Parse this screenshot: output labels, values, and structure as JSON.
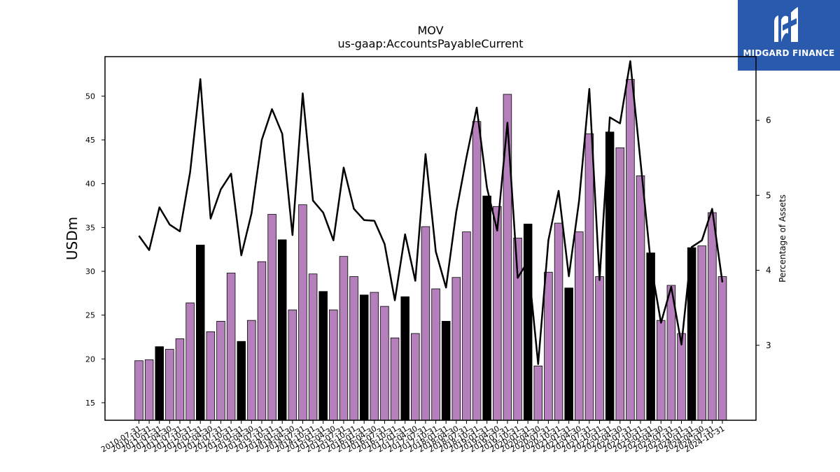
{
  "brand": {
    "name": "MIDGARD FINANCE",
    "logo_icon": "midgard-m-logo-icon",
    "color": "#2a5aad"
  },
  "chart_data": {
    "type": "bar",
    "title": "MOV",
    "subtitle": "us-gaap:AccountsPayableCurrent",
    "ylabel": "USDm",
    "y2label": "Percentage of Assets",
    "ylim": [
      13,
      54.5
    ],
    "y2lim": [
      2.0,
      6.85
    ],
    "yticks": [
      15,
      20,
      25,
      30,
      35,
      40,
      45,
      50
    ],
    "y2ticks": [
      3,
      4,
      5,
      6
    ],
    "colors": {
      "bar": "#b57fbb",
      "bar_fy": "#000000",
      "line": "#000000"
    },
    "categories": [
      "2010-07-31",
      "2010-10-31",
      "2011-01-31",
      "2011-04-30",
      "2011-07-31",
      "2011-10-31",
      "2012-01-31",
      "2012-04-30",
      "2012-07-31",
      "2012-10-31",
      "2013-01-31",
      "2013-04-30",
      "2013-07-31",
      "2013-10-31",
      "2014-01-31",
      "2014-04-30",
      "2014-07-31",
      "2014-10-31",
      "2015-01-31",
      "2015-04-30",
      "2015-07-31",
      "2015-10-31",
      "2016-01-31",
      "2016-04-30",
      "2016-07-31",
      "2016-10-31",
      "2017-01-31",
      "2017-04-30",
      "2017-07-31",
      "2017-10-31",
      "2018-01-31",
      "2018-04-30",
      "2018-07-31",
      "2018-10-31",
      "2019-01-31",
      "2019-04-30",
      "2019-07-31",
      "2019-10-31",
      "2020-01-31",
      "2020-04-30",
      "2020-07-31",
      "2020-10-31",
      "2021-01-31",
      "2021-04-30",
      "2021-07-31",
      "2021-10-31",
      "2022-01-31",
      "2022-04-30",
      "2022-07-31",
      "2022-10-31",
      "2023-01-31",
      "2023-04-30",
      "2023-07-31",
      "2023-10-31",
      "2024-01-31",
      "2024-04-30",
      "2024-07-31",
      "2024-10-31"
    ],
    "series": [
      {
        "type": "bar",
        "values": [
          19.8,
          19.9,
          21.4,
          21.1,
          22.3,
          26.4,
          33.0,
          23.1,
          24.3,
          29.8,
          22.0,
          24.4,
          31.1,
          36.5,
          33.6,
          25.6,
          37.6,
          29.7,
          27.7,
          25.6,
          31.7,
          29.4,
          27.3,
          27.6,
          26.0,
          22.4,
          27.1,
          22.9,
          35.1,
          28.0,
          24.3,
          29.3,
          34.5,
          47.1,
          38.6,
          37.4,
          50.2,
          33.8,
          35.4,
          19.2,
          29.9,
          35.5,
          28.1,
          34.5,
          45.7,
          29.4,
          45.9,
          44.1,
          51.9,
          40.9,
          32.1,
          24.4,
          28.4,
          22.9,
          32.7,
          32.9,
          36.7,
          29.4
        ],
        "fiscal_year_end": [
          false,
          false,
          true,
          false,
          false,
          false,
          true,
          false,
          false,
          false,
          true,
          false,
          false,
          false,
          true,
          false,
          false,
          false,
          true,
          false,
          false,
          false,
          true,
          false,
          false,
          false,
          true,
          false,
          false,
          false,
          true,
          false,
          false,
          false,
          true,
          false,
          false,
          false,
          true,
          false,
          false,
          false,
          true,
          false,
          false,
          false,
          true,
          false,
          false,
          false,
          true,
          false,
          false,
          false,
          true,
          false,
          false,
          false
        ]
      },
      {
        "type": "line",
        "axis": "right",
        "values": [
          4.46,
          4.27,
          4.84,
          4.61,
          4.52,
          5.31,
          6.55,
          4.69,
          5.08,
          5.29,
          4.2,
          4.76,
          5.74,
          6.15,
          5.82,
          4.47,
          6.36,
          4.93,
          4.77,
          4.4,
          5.37,
          4.82,
          4.67,
          4.66,
          4.35,
          3.6,
          4.48,
          3.86,
          5.55,
          4.25,
          3.77,
          4.78,
          5.51,
          6.17,
          5.1,
          4.53,
          5.97,
          3.9,
          4.12,
          2.75,
          4.4,
          5.06,
          3.92,
          4.93,
          6.42,
          3.87,
          6.04,
          5.96,
          6.79,
          5.45,
          4.1,
          3.3,
          3.78,
          3.01,
          4.31,
          4.4,
          4.82,
          3.84
        ]
      }
    ]
  }
}
